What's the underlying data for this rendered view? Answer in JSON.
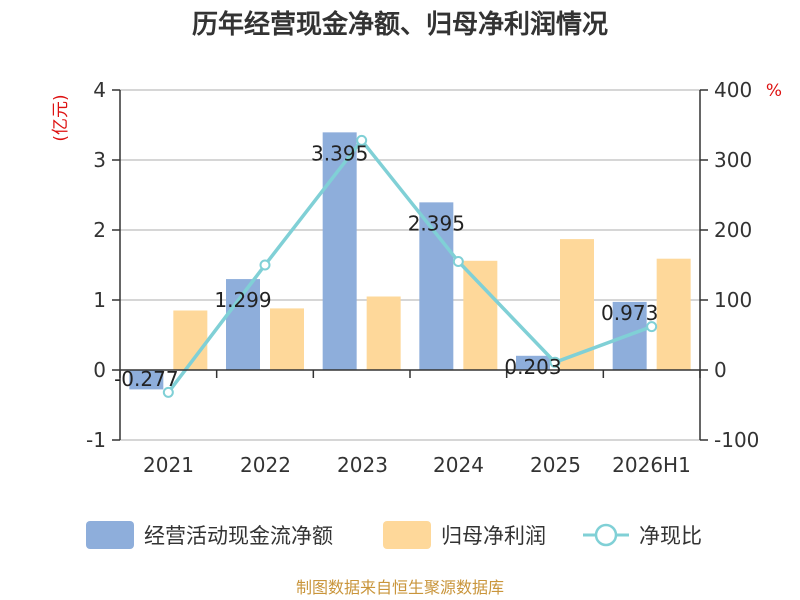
{
  "chart_data": {
    "type": "bar",
    "title": "历年经营现金净额、归母净利润情况",
    "categories": [
      "2021",
      "2022",
      "2023",
      "2024",
      "2025",
      "2026H1"
    ],
    "left_axis": {
      "unit": "(亿元)",
      "ticks": [
        "4",
        "3",
        "2",
        "1",
        "0",
        "-1"
      ],
      "ylim": [
        -1,
        4
      ]
    },
    "right_axis": {
      "unit": "%",
      "ticks": [
        "400",
        "300",
        "200",
        "100",
        "0",
        "-100"
      ],
      "ylim": [
        -100,
        400
      ]
    },
    "series": [
      {
        "name": "经营活动现金流净额",
        "type": "bar",
        "axis": "left",
        "values": [
          -0.277,
          1.299,
          3.395,
          2.395,
          0.203,
          0.973
        ],
        "labels": [
          "-0.277",
          "1.299",
          "3.395",
          "2.395",
          "0.203",
          "0.973"
        ]
      },
      {
        "name": "归母净利润",
        "type": "bar",
        "axis": "left",
        "values": [
          0.85,
          0.88,
          1.05,
          1.56,
          1.87,
          1.59
        ]
      },
      {
        "name": "净现比",
        "type": "line",
        "axis": "right",
        "values": [
          -32,
          150,
          328,
          155,
          11,
          62
        ]
      }
    ],
    "colors": {
      "cash_flow": "#8eaedb",
      "net_profit": "#fed89a",
      "ratio": "#80d0d6",
      "axis_unit": "#dd1111"
    },
    "grid": true,
    "legend_position": "bottom"
  },
  "source": "制图数据来自恒生聚源数据库",
  "source_color": "#c9953b"
}
